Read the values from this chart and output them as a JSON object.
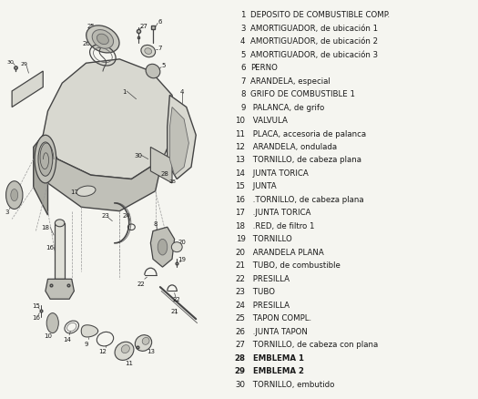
{
  "background_color": "#f5f5f0",
  "parts_list": [
    {
      "num": "1",
      "bold": false,
      "text": "DEPOSITO DE COMBUSTIBLE COMP."
    },
    {
      "num": "3",
      "bold": false,
      "text": "AMORTIGUADOR, de ubicación 1"
    },
    {
      "num": "4",
      "bold": false,
      "text": "AMORTIGUADOR, de ubicación 2"
    },
    {
      "num": "5",
      "bold": false,
      "text": "AMORTIGUADOR, de ubicación 3"
    },
    {
      "num": "6",
      "bold": false,
      "text": "PERNO"
    },
    {
      "num": "7",
      "bold": false,
      "text": "ARANDELA, especial"
    },
    {
      "num": "8",
      "bold": false,
      "text": "GRIFO DE COMBUSTIBLE 1"
    },
    {
      "num": "9",
      "bold": false,
      "text": " PALANCA, de grifo"
    },
    {
      "num": "10",
      "bold": false,
      "text": " VALVULA"
    },
    {
      "num": "11",
      "bold": false,
      "text": " PLACA, accesoria de palanca"
    },
    {
      "num": "12",
      "bold": false,
      "text": " ARANDELA, ondulada"
    },
    {
      "num": "13",
      "bold": false,
      "text": " TORNILLO, de cabeza plana"
    },
    {
      "num": "14",
      "bold": false,
      "text": " JUNTA TORICA"
    },
    {
      "num": "15",
      "bold": false,
      "text": " JUNTA"
    },
    {
      "num": "16",
      "bold": false,
      "text": " .TORNILLO, de cabeza plana"
    },
    {
      "num": "17",
      "bold": false,
      "text": " .JUNTA TORICA"
    },
    {
      "num": "18",
      "bold": false,
      "text": " .RED, de filtro 1"
    },
    {
      "num": "19",
      "bold": false,
      "text": " TORNILLO"
    },
    {
      "num": "20",
      "bold": false,
      "text": " ARANDELA PLANA"
    },
    {
      "num": "21",
      "bold": false,
      "text": " TUBO, de combustible"
    },
    {
      "num": "22",
      "bold": false,
      "text": " PRESILLA"
    },
    {
      "num": "23",
      "bold": false,
      "text": " TUBO"
    },
    {
      "num": "24",
      "bold": false,
      "text": " PRESILLA"
    },
    {
      "num": "25",
      "bold": false,
      "text": " TAPON COMPL."
    },
    {
      "num": "26",
      "bold": false,
      "text": " .JUNTA TAPON"
    },
    {
      "num": "27",
      "bold": false,
      "text": " TORNILLO, de cabeza con plana"
    },
    {
      "num": "28",
      "bold": true,
      "text": " EMBLEMA 1"
    },
    {
      "num": "29",
      "bold": true,
      "text": " EMBLEMA 2"
    },
    {
      "num": "30",
      "bold": false,
      "text": " TORNILLO, embutido"
    }
  ],
  "text_color": "#1a1a1a",
  "num_color": "#1a1a1a",
  "font_size_parts": 6.2,
  "fig_width": 5.25,
  "fig_height": 4.39,
  "dpi": 100,
  "line_color": "#444444",
  "lc2": "#666666",
  "fill_light": "#d8d8d0",
  "fill_mid": "#c0c0b8",
  "fill_dark": "#a8a8a0"
}
